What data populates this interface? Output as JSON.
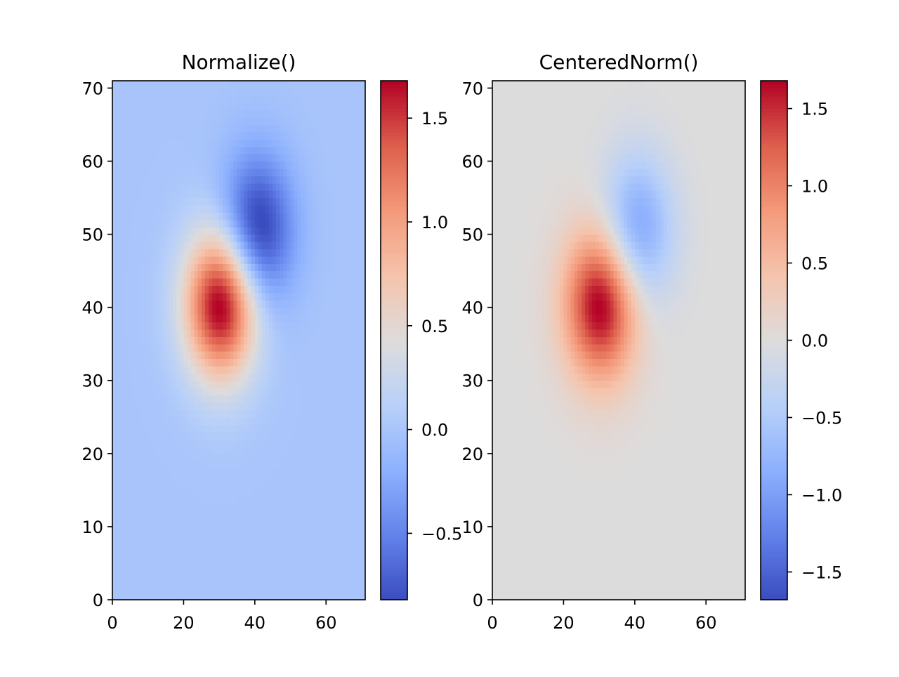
{
  "chart_data": [
    {
      "type": "heatmap",
      "title": "Normalize()",
      "norm": "linear",
      "colormap": "coolwarm",
      "xlim": [
        0,
        71
      ],
      "ylim": [
        0,
        71
      ],
      "grid": false,
      "xticks": [
        "0",
        "20",
        "40",
        "60"
      ],
      "xtick_values": [
        0,
        20,
        40,
        60
      ],
      "yticks": [
        "0",
        "10",
        "20",
        "30",
        "40",
        "50",
        "60",
        "70"
      ],
      "ytick_values": [
        0,
        10,
        20,
        30,
        40,
        50,
        60,
        70
      ],
      "colorbar": {
        "range": [
          -0.82,
          1.68
        ],
        "ticks": [
          "−0.5",
          "0.0",
          "0.5",
          "1.0",
          "1.5"
        ],
        "tick_values": [
          -0.5,
          0,
          0.5,
          1.0,
          1.5
        ]
      }
    },
    {
      "type": "heatmap",
      "title": "CenteredNorm()",
      "norm": "centered",
      "colormap": "coolwarm",
      "xlim": [
        0,
        71
      ],
      "ylim": [
        0,
        71
      ],
      "grid": false,
      "xticks": [
        "0",
        "20",
        "40",
        "60"
      ],
      "xtick_values": [
        0,
        20,
        40,
        60
      ],
      "yticks": [
        "0",
        "10",
        "20",
        "30",
        "40",
        "50",
        "60",
        "70"
      ],
      "ytick_values": [
        0,
        10,
        20,
        30,
        40,
        50,
        60,
        70
      ],
      "colorbar": {
        "range": [
          -1.68,
          1.68
        ],
        "ticks": [
          "−1.5",
          "−1.0",
          "−0.5",
          "0.0",
          "0.5",
          "1.0",
          "1.5"
        ],
        "tick_values": [
          -1.5,
          -1.0,
          -0.5,
          0,
          0.5,
          1.0,
          1.5
        ]
      }
    }
  ],
  "field": {
    "grid_size": [
      71,
      71
    ],
    "components": [
      {
        "amplitude": 1.8,
        "center": [
          30,
          40
        ],
        "width": 10
      },
      {
        "amplitude": -1.0,
        "center": [
          40,
          50
        ],
        "width": 10
      }
    ]
  },
  "colors": {
    "coolwarm": [
      "#3a4cc0",
      "#6282ea",
      "#8db0fe",
      "#b8d0f9",
      "#dddcdc",
      "#f5c4ad",
      "#f49a7b",
      "#de604d",
      "#b40426"
    ]
  }
}
